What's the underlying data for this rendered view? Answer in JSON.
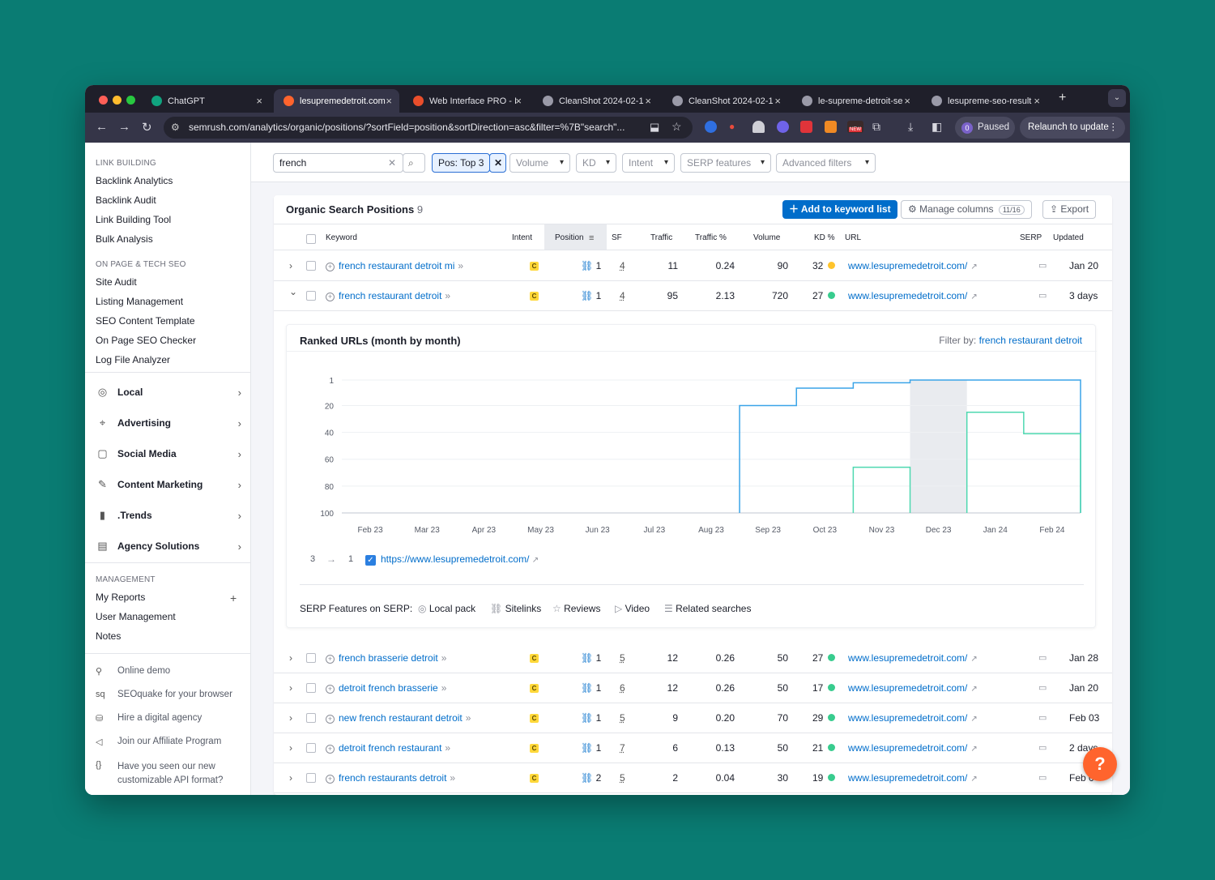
{
  "browser": {
    "tabs": [
      {
        "title": "ChatGPT",
        "icon": "chatgpt-icon",
        "color": "#10a37f"
      },
      {
        "title": "lesupremedetroit.com",
        "icon": "semrush-icon",
        "color": "#ff642d"
      },
      {
        "title": "Web Interface PRO - I",
        "icon": "web-interface-icon",
        "color": "#e94e2b"
      },
      {
        "title": "CleanShot 2024-02-1",
        "icon": "globe-icon",
        "color": "#9a9aa8"
      },
      {
        "title": "CleanShot 2024-02-1",
        "icon": "globe-icon",
        "color": "#9a9aa8"
      },
      {
        "title": "le-supreme-detroit-se",
        "icon": "globe-icon",
        "color": "#9a9aa8"
      },
      {
        "title": "lesupreme-seo-result",
        "icon": "globe-icon",
        "color": "#9a9aa8"
      }
    ],
    "address": "semrush.com/analytics/organic/positions/?sortField=position&sortDirection=asc&filter=%7B\"search\"...",
    "profile_initial": "0",
    "paused_label": "Paused",
    "relaunch_label": "Relaunch to update",
    "ext_new_badge": "NEW"
  },
  "sidebar": {
    "link_building_header": "LINK BUILDING",
    "link_building": [
      "Backlink Analytics",
      "Backlink Audit",
      "Link Building Tool",
      "Bulk Analysis"
    ],
    "onpage_header": "ON PAGE & TECH SEO",
    "onpage": [
      "Site Audit",
      "Listing Management",
      "SEO Content Template",
      "On Page SEO Checker",
      "Log File Analyzer"
    ],
    "categories": [
      {
        "label": "Local",
        "icon": "location-pin-icon"
      },
      {
        "label": "Advertising",
        "icon": "crosshair-icon"
      },
      {
        "label": "Social Media",
        "icon": "chat-bubble-icon"
      },
      {
        "label": "Content Marketing",
        "icon": "pencil-icon"
      },
      {
        "label": ".Trends",
        "icon": "bar-chart-icon"
      },
      {
        "label": "Agency Solutions",
        "icon": "document-icon"
      }
    ],
    "management_header": "MANAGEMENT",
    "management": [
      "My Reports",
      "User Management",
      "Notes"
    ],
    "footer": [
      {
        "label": "Online demo",
        "icon": "presenter-icon"
      },
      {
        "label": "SEOquake for your browser",
        "icon": "seoquake-icon"
      },
      {
        "label": "Hire a digital agency",
        "icon": "agency-icon"
      },
      {
        "label": "Join our Affiliate Program",
        "icon": "megaphone-icon"
      },
      {
        "label": "Have you seen our new customizable API format?",
        "icon": "braces-icon"
      }
    ]
  },
  "filters": {
    "search_value": "french",
    "pos_chip": "Pos: Top 3",
    "dropdowns": [
      "Volume",
      "KD",
      "Intent",
      "SERP features",
      "Advanced filters"
    ]
  },
  "table": {
    "title": "Organic Search Positions",
    "count": "9",
    "add_button": "Add to keyword list",
    "manage_columns": "Manage columns",
    "manage_columns_badge": "11/16",
    "export": "Export",
    "columns": [
      "Keyword",
      "Intent",
      "Position",
      "SF",
      "Traffic",
      "Traffic %",
      "Volume",
      "KD %",
      "URL",
      "SERP",
      "Updated"
    ],
    "rows": [
      {
        "keyword": "french restaurant detroit mi",
        "intent": "C",
        "position": "1",
        "sf": "4",
        "traffic": "11",
        "traffic_pct": "0.24",
        "volume": "90",
        "kd": "32",
        "kd_color": "#ffc42b",
        "url": "www.lesupremedetroit.com/",
        "updated": "Jan 20"
      },
      {
        "keyword": "french restaurant detroit",
        "intent": "C",
        "position": "1",
        "sf": "4",
        "traffic": "95",
        "traffic_pct": "2.13",
        "volume": "720",
        "kd": "27",
        "kd_color": "#38cc8e",
        "url": "www.lesupremedetroit.com/",
        "updated": "3 days"
      },
      {
        "keyword": "french brasserie detroit",
        "intent": "C",
        "position": "1",
        "sf": "5",
        "traffic": "12",
        "traffic_pct": "0.26",
        "volume": "50",
        "kd": "27",
        "kd_color": "#38cc8e",
        "url": "www.lesupremedetroit.com/",
        "updated": "Jan 28"
      },
      {
        "keyword": "detroit french brasserie",
        "intent": "C",
        "position": "1",
        "sf": "6",
        "traffic": "12",
        "traffic_pct": "0.26",
        "volume": "50",
        "kd": "17",
        "kd_color": "#38cc8e",
        "url": "www.lesupremedetroit.com/",
        "updated": "Jan 20"
      },
      {
        "keyword": "new french restaurant detroit",
        "intent": "C",
        "position": "1",
        "sf": "5",
        "traffic": "9",
        "traffic_pct": "0.20",
        "volume": "70",
        "kd": "29",
        "kd_color": "#38cc8e",
        "url": "www.lesupremedetroit.com/",
        "updated": "Feb 03"
      },
      {
        "keyword": "detroit french restaurant",
        "intent": "C",
        "position": "1",
        "sf": "7",
        "traffic": "6",
        "traffic_pct": "0.13",
        "volume": "50",
        "kd": "21",
        "kd_color": "#38cc8e",
        "url": "www.lesupremedetroit.com/",
        "updated": "2 days"
      },
      {
        "keyword": "french restaurants detroit",
        "intent": "C",
        "position": "2",
        "sf": "5",
        "traffic": "2",
        "traffic_pct": "0.04",
        "volume": "30",
        "kd": "19",
        "kd_color": "#38cc8e",
        "url": "www.lesupremedetroit.com/",
        "updated": "Feb 0"
      }
    ]
  },
  "ranked": {
    "title": "Ranked URLs (month by month)",
    "filter_label": "Filter by:",
    "filter_value": "french restaurant detroit",
    "legend_from": "3",
    "legend_to": "1",
    "legend_url": "https://www.lesupremedetroit.com/",
    "serp_label": "SERP Features on SERP:",
    "serp_features": [
      {
        "label": "Local pack",
        "icon": "pin-icon"
      },
      {
        "label": "Sitelinks",
        "icon": "link-icon"
      },
      {
        "label": "Reviews",
        "icon": "star-icon"
      },
      {
        "label": "Video",
        "icon": "video-icon"
      },
      {
        "label": "Related searches",
        "icon": "list-icon"
      }
    ]
  },
  "chart_data": {
    "type": "line",
    "title": "Ranked URLs (month by month)",
    "categories": [
      "Feb 23",
      "Mar 23",
      "Apr 23",
      "May 23",
      "Jun 23",
      "Jul 23",
      "Aug 23",
      "Sep 23",
      "Oct 23",
      "Nov 23",
      "Dec 23",
      "Jan 24",
      "Feb 24"
    ],
    "y_ticks": [
      1,
      20,
      40,
      60,
      80,
      100
    ],
    "ylim": [
      1,
      100
    ],
    "y_inverted": true,
    "highlight_category": "Dec 23",
    "series": [
      {
        "color": "#3aa4e8",
        "values": [
          null,
          null,
          null,
          null,
          null,
          null,
          null,
          20,
          7,
          3,
          1,
          1,
          1
        ]
      },
      {
        "color": "#4ed8b0",
        "values": [
          null,
          null,
          null,
          null,
          null,
          null,
          null,
          null,
          null,
          66,
          null,
          25,
          41
        ]
      }
    ]
  }
}
